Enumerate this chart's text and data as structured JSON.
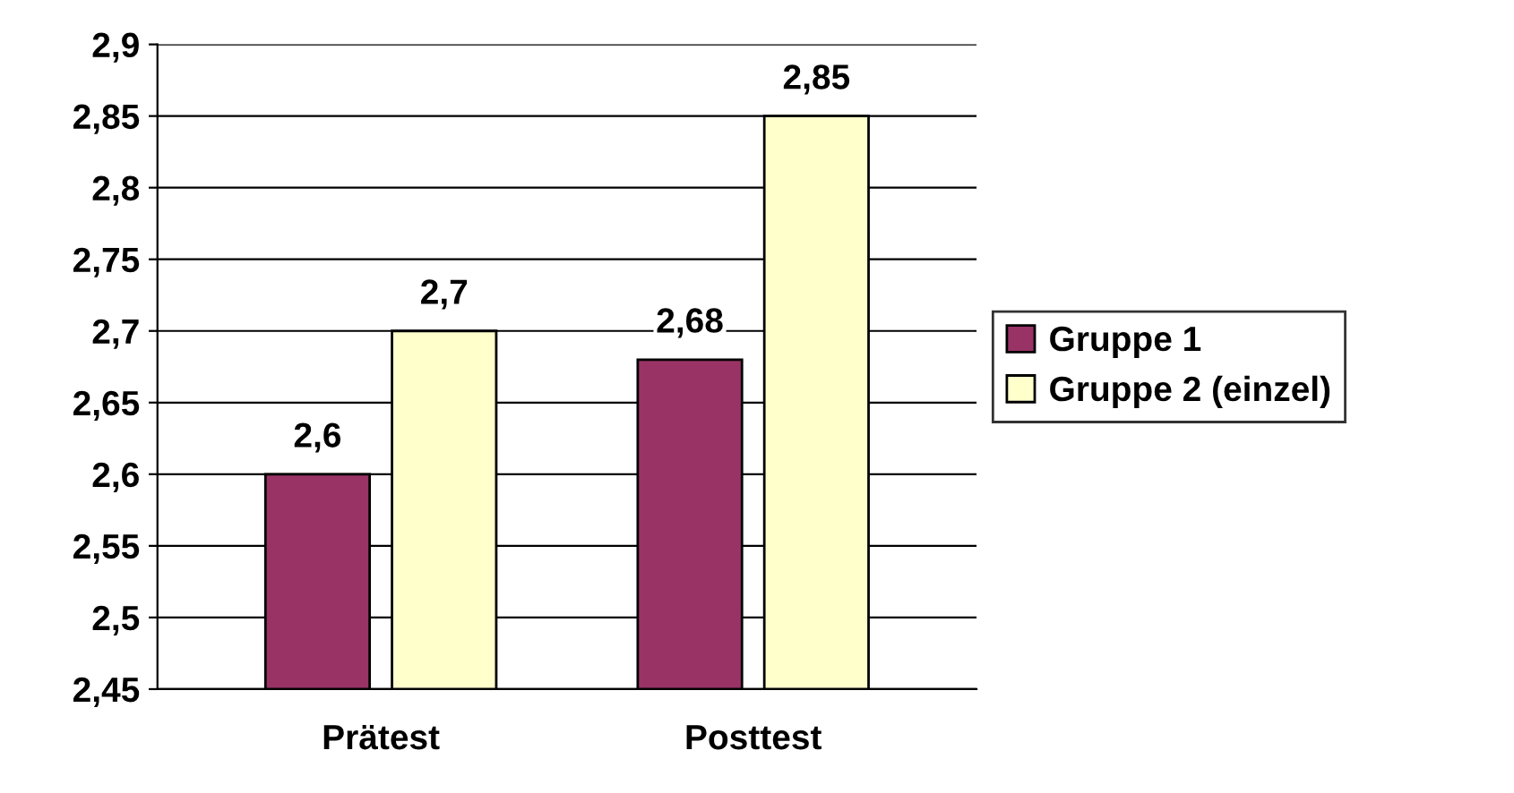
{
  "chart_data": {
    "type": "bar",
    "categories": [
      "Prätest",
      "Posttest"
    ],
    "series": [
      {
        "name": "Gruppe 1",
        "color": "#993366",
        "values": [
          2.6,
          2.68
        ],
        "value_labels": [
          "2,6",
          "2,68"
        ]
      },
      {
        "name": "Gruppe 2 (einzel)",
        "color": "#ffffcc",
        "values": [
          2.7,
          2.85
        ],
        "value_labels": [
          "2,7",
          "2,85"
        ]
      }
    ],
    "ylim": [
      2.45,
      2.9
    ],
    "yticks": [
      {
        "value": 2.45,
        "label": "2,45"
      },
      {
        "value": 2.5,
        "label": "2,5"
      },
      {
        "value": 2.55,
        "label": "2,55"
      },
      {
        "value": 2.6,
        "label": "2,6"
      },
      {
        "value": 2.65,
        "label": "2,65"
      },
      {
        "value": 2.7,
        "label": "2,7"
      },
      {
        "value": 2.75,
        "label": "2,75"
      },
      {
        "value": 2.8,
        "label": "2,8"
      },
      {
        "value": 2.85,
        "label": "2,85"
      },
      {
        "value": 2.9,
        "label": "2,9"
      }
    ],
    "grid": "y",
    "legend": "right"
  }
}
